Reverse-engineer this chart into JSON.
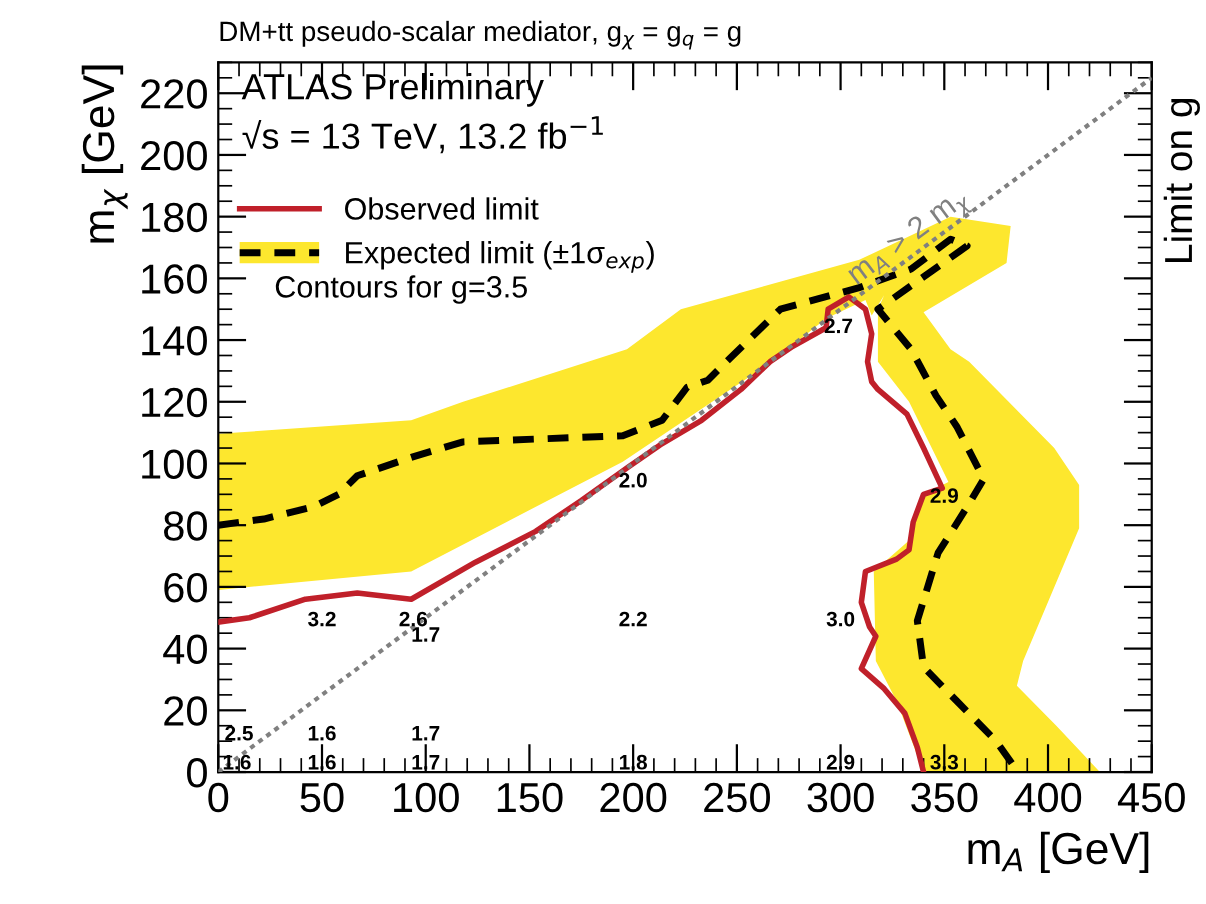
{
  "chart_data": {
    "type": "line",
    "title": "DM+tt pseudo-scalar mediator, g$_{χ}$ = g$_{q}$ = g",
    "xlabel": "m$_{A}$ [GeV]",
    "ylabel": "m$_{χ}$ [GeV]",
    "y2label": "Limit on g",
    "xlim": [
      0,
      450
    ],
    "ylim": [
      0,
      230
    ],
    "xticks": [
      0,
      50,
      100,
      150,
      200,
      250,
      300,
      350,
      400,
      450
    ],
    "yticks": [
      0,
      20,
      40,
      60,
      80,
      100,
      120,
      140,
      160,
      180,
      200,
      220
    ],
    "grid": false,
    "legend": "top left",
    "series": [
      {
        "name": "Observed limit",
        "color": "#c0202a",
        "line_style": "solid",
        "x": [
          0,
          15,
          42,
          67,
          93,
          124,
          153,
          175,
          198,
          213,
          233,
          252,
          266,
          277,
          293,
          294,
          304,
          312,
          315,
          313,
          315,
          318,
          332,
          340,
          349,
          340,
          335,
          333,
          327,
          312,
          310,
          314,
          317,
          310,
          321,
          331,
          337,
          340
        ],
        "values": [
          48.6,
          50,
          56,
          58,
          56,
          68,
          78,
          88,
          99,
          106,
          114,
          124,
          133,
          138,
          144,
          150,
          154,
          150,
          142,
          133,
          126.5,
          124,
          116,
          105,
          92,
          90,
          81,
          72,
          69,
          65,
          55,
          47,
          44,
          33.5,
          27,
          19,
          8,
          0
        ]
      },
      {
        "type": "area",
        "color": "#fde72e",
        "x": [
          0,
          93,
          118,
          197,
          223,
          309,
          353,
          382,
          380,
          340,
          353,
          362,
          403,
          415,
          415,
          388,
          385,
          404,
          425,
          340,
          327,
          317,
          316,
          333,
          340,
          352,
          333,
          318,
          318,
          321,
          315,
          312,
          293,
          267,
          195,
          93,
          0
        ],
        "values": [
          109.6,
          114,
          120,
          137,
          150,
          166,
          180,
          177,
          165,
          149,
          137,
          133,
          105,
          93,
          79,
          36,
          28,
          15,
          0,
          0,
          23,
          36,
          65,
          75,
          90,
          94,
          120,
          133,
          150,
          154.5,
          148,
          153,
          147,
          133,
          100.6,
          65,
          59
        ]
      },
      {
        "name": "Expected limit (±1σ$_{exp}$)",
        "color": "#000000",
        "line_style": "dashed",
        "x": [
          0,
          22,
          46,
          58,
          67,
          93,
          118,
          195,
          214,
          226,
          236,
          245,
          271,
          309,
          334,
          353,
          361,
          318,
          334,
          346,
          356,
          369,
          362,
          347,
          337,
          340,
          356,
          375,
          384,
          385
        ],
        "values": [
          80,
          82,
          86,
          90,
          96,
          102,
          107,
          109,
          114,
          124.7,
          127,
          133,
          150,
          157,
          163,
          172.7,
          170.5,
          150,
          137,
          122,
          112,
          95,
          87,
          71,
          49,
          34,
          23,
          10,
          1.5,
          0
        ]
      },
      {
        "name": "m$_{A}$ > 2 m$_{χ}$",
        "color": "#808080",
        "line_style": "dotted",
        "x": [
          0,
          450
        ],
        "values": [
          0,
          225
        ]
      }
    ],
    "annotations": [
      "ATLAS Preliminary",
      "√s = 13 TeV, 13.2 fb$^{−1}$",
      "Contours for g=3.5",
      "3.2",
      "2.6",
      "1.7",
      "2.2",
      "3.0",
      "2.0",
      "2.9",
      "2.7",
      "2.5",
      "1.6",
      "1.7",
      "1.6",
      "1.6",
      "1.7",
      "1.8",
      "2.9",
      "3.3"
    ]
  }
}
